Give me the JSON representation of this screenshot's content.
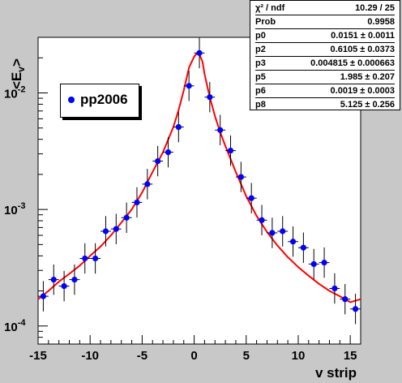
{
  "stats": {
    "rows": [
      {
        "key": "χ² / ndf",
        "value": "10.29 / 25"
      },
      {
        "key": "Prob",
        "value": "0.9958"
      },
      {
        "key": "p0",
        "value": "0.0151 ± 0.0011"
      },
      {
        "key": "p2",
        "value": "0.6105 ± 0.0373"
      },
      {
        "key": "p3",
        "value": "0.004815 ± 0.000663"
      },
      {
        "key": "p5",
        "value": "1.985 ± 0.207"
      },
      {
        "key": "p6",
        "value": "0.0019 ± 0.0003"
      },
      {
        "key": "p8",
        "value": "5.125 ± 0.256"
      }
    ]
  },
  "colors": {
    "frame_bg": "#c8c8c8",
    "plot_bg": "#ffffff",
    "marker": "#0000ff",
    "fit": "#ff0000"
  },
  "chart_data": {
    "type": "scatter",
    "title": "",
    "xlabel": "v strip",
    "ylabel": "<E_v>",
    "xlim": [
      -15,
      16
    ],
    "ylim": [
      7e-05,
      0.03
    ],
    "y_scale": "log",
    "x_ticks": [
      -15,
      -10,
      -5,
      0,
      5,
      10,
      15
    ],
    "x_tick_labels": [
      "-15",
      "-10",
      "-5",
      "0",
      "5",
      "10",
      "15"
    ],
    "y_ticks": [
      0.0001,
      0.001,
      0.01
    ],
    "y_tick_labels": [
      "10-4",
      "10-3",
      "10-2"
    ],
    "grid": false,
    "legend": {
      "position": "top-left",
      "entries": [
        "pp2006"
      ]
    },
    "series": [
      {
        "name": "pp2006",
        "marker": "circle",
        "x": [
          -14.5,
          -13.5,
          -12.5,
          -11.5,
          -10.5,
          -9.5,
          -8.5,
          -7.5,
          -6.5,
          -5.5,
          -4.5,
          -3.5,
          -2.5,
          -1.5,
          -0.5,
          0.5,
          1.5,
          2.5,
          3.5,
          4.5,
          5.5,
          6.5,
          7.5,
          8.5,
          9.5,
          10.5,
          11.5,
          12.5,
          13.5,
          14.5,
          15.5
        ],
        "y": [
          0.00018,
          0.00025,
          0.00022,
          0.00025,
          0.00038,
          0.00038,
          0.00065,
          0.00068,
          0.00085,
          0.00115,
          0.00165,
          0.0026,
          0.0031,
          0.0051,
          0.0115,
          0.022,
          0.0092,
          0.0048,
          0.0032,
          0.0019,
          0.00125,
          0.00081,
          0.00063,
          0.00065,
          0.00053,
          0.00047,
          0.00034,
          0.00035,
          0.00021,
          0.00017,
          0.00014
        ],
        "yerr_rel": 0.35
      }
    ],
    "fit": {
      "name": "fit",
      "color": "#ff0000",
      "x": [
        -15,
        -14,
        -13,
        -12,
        -11,
        -10,
        -9,
        -8,
        -7,
        -6,
        -5,
        -4,
        -3,
        -2,
        -1.5,
        -1,
        -0.5,
        0,
        0.3,
        0.5,
        0.8,
        1,
        1.5,
        2,
        2.5,
        3,
        4,
        5,
        6,
        7,
        8,
        9,
        10,
        11,
        12,
        13,
        14,
        15,
        16
      ],
      "y": [
        0.00017,
        0.0002,
        0.00024,
        0.00028,
        0.00033,
        0.0004,
        0.00048,
        0.0006,
        0.00077,
        0.001,
        0.0014,
        0.0021,
        0.0031,
        0.0051,
        0.0071,
        0.0105,
        0.0165,
        0.0205,
        0.022,
        0.0215,
        0.0185,
        0.0145,
        0.0092,
        0.0063,
        0.0046,
        0.0035,
        0.0021,
        0.0013,
        0.00088,
        0.00064,
        0.00049,
        0.00039,
        0.00032,
        0.00027,
        0.00023,
        0.0002,
        0.00018,
        0.00016,
        0.00017
      ]
    }
  }
}
